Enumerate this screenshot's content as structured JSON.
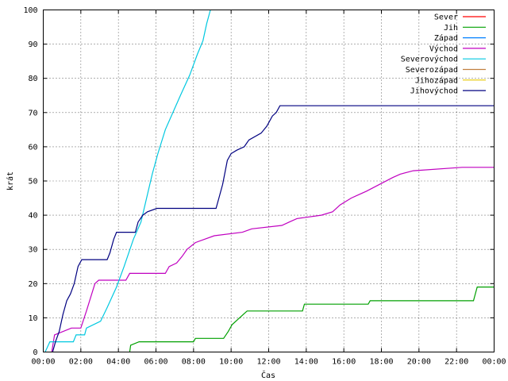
{
  "chart_data": {
    "type": "line",
    "xlabel": "Čas",
    "ylabel": "krát",
    "xlim": [
      0,
      24
    ],
    "ylim": [
      0,
      100
    ],
    "x_ticks": [
      {
        "x": 0,
        "label": "00:00"
      },
      {
        "x": 2,
        "label": "02:00"
      },
      {
        "x": 4,
        "label": "04:00"
      },
      {
        "x": 6,
        "label": "06:00"
      },
      {
        "x": 8,
        "label": "08:00"
      },
      {
        "x": 10,
        "label": "10:00"
      },
      {
        "x": 12,
        "label": "12:00"
      },
      {
        "x": 14,
        "label": "14:00"
      },
      {
        "x": 16,
        "label": "16:00"
      },
      {
        "x": 18,
        "label": "18:00"
      },
      {
        "x": 20,
        "label": "20:00"
      },
      {
        "x": 22,
        "label": "22:00"
      },
      {
        "x": 24,
        "label": "00:00"
      }
    ],
    "y_ticks": [
      0,
      10,
      20,
      30,
      40,
      50,
      60,
      70,
      80,
      90,
      100
    ],
    "grid": true,
    "legend_position": "top-right",
    "series": [
      {
        "name": "Sever",
        "color": "#ff0000",
        "points": []
      },
      {
        "name": "Jih",
        "color": "#00a000",
        "points": [
          [
            4.6,
            0
          ],
          [
            4.65,
            2
          ],
          [
            5.1,
            3
          ],
          [
            8.0,
            3
          ],
          [
            8.1,
            4
          ],
          [
            9.6,
            4
          ],
          [
            9.85,
            6
          ],
          [
            10.05,
            8
          ],
          [
            10.45,
            10
          ],
          [
            10.65,
            11
          ],
          [
            10.85,
            12
          ],
          [
            13.8,
            12
          ],
          [
            13.9,
            14
          ],
          [
            17.3,
            14
          ],
          [
            17.4,
            15
          ],
          [
            22.9,
            15
          ],
          [
            23.1,
            19
          ],
          [
            24,
            19
          ]
        ]
      },
      {
        "name": "Západ",
        "color": "#0080ff",
        "points": []
      },
      {
        "name": "Východ",
        "color": "#c000c0",
        "points": [
          [
            0.45,
            0
          ],
          [
            0.6,
            5
          ],
          [
            1.5,
            7
          ],
          [
            2.0,
            7
          ],
          [
            2.3,
            12
          ],
          [
            2.75,
            20
          ],
          [
            2.95,
            21
          ],
          [
            4.4,
            21
          ],
          [
            4.6,
            23
          ],
          [
            6.5,
            23
          ],
          [
            6.7,
            25
          ],
          [
            7.1,
            26
          ],
          [
            7.4,
            28
          ],
          [
            7.65,
            30
          ],
          [
            8.1,
            32
          ],
          [
            8.6,
            33
          ],
          [
            9.1,
            34
          ],
          [
            10.6,
            35
          ],
          [
            11.1,
            36
          ],
          [
            12.7,
            37
          ],
          [
            13.1,
            38
          ],
          [
            13.5,
            39
          ],
          [
            14.8,
            40
          ],
          [
            15.4,
            41
          ],
          [
            15.8,
            43
          ],
          [
            16.4,
            45
          ],
          [
            16.8,
            46
          ],
          [
            17.2,
            47
          ],
          [
            17.9,
            49
          ],
          [
            18.6,
            51
          ],
          [
            19.0,
            52
          ],
          [
            19.7,
            53
          ],
          [
            22.3,
            54
          ],
          [
            24,
            54
          ]
        ]
      },
      {
        "name": "Severovýchod",
        "color": "#00c8e0",
        "points": [
          [
            0.1,
            0
          ],
          [
            0.35,
            3
          ],
          [
            0.7,
            3
          ],
          [
            1.6,
            3
          ],
          [
            1.75,
            5
          ],
          [
            2.2,
            5
          ],
          [
            2.3,
            7
          ],
          [
            3.05,
            9
          ],
          [
            3.4,
            13
          ],
          [
            3.9,
            19
          ],
          [
            4.3,
            25
          ],
          [
            4.8,
            33
          ],
          [
            5.2,
            38
          ],
          [
            5.5,
            45
          ],
          [
            5.8,
            52
          ],
          [
            6.1,
            58
          ],
          [
            6.5,
            65
          ],
          [
            6.9,
            70
          ],
          [
            7.3,
            75
          ],
          [
            7.8,
            81
          ],
          [
            8.2,
            87
          ],
          [
            8.5,
            91
          ],
          [
            8.7,
            96
          ],
          [
            8.9,
            100
          ]
        ]
      },
      {
        "name": "Severozápad",
        "color": "#c08040",
        "points": []
      },
      {
        "name": "Jihozápad",
        "color": "#e6c800",
        "points": []
      },
      {
        "name": "Jihovýchod",
        "color": "#000080",
        "points": [
          [
            0.5,
            0
          ],
          [
            0.65,
            3
          ],
          [
            0.85,
            6
          ],
          [
            1.05,
            11
          ],
          [
            1.25,
            15
          ],
          [
            1.45,
            17
          ],
          [
            1.65,
            20
          ],
          [
            1.85,
            25
          ],
          [
            2.05,
            27
          ],
          [
            3.4,
            27
          ],
          [
            3.55,
            29
          ],
          [
            3.75,
            33
          ],
          [
            3.9,
            35
          ],
          [
            4.9,
            35
          ],
          [
            5.05,
            38
          ],
          [
            5.3,
            40
          ],
          [
            5.55,
            41
          ],
          [
            6.05,
            42
          ],
          [
            9.2,
            42
          ],
          [
            9.35,
            45
          ],
          [
            9.55,
            49
          ],
          [
            9.8,
            56
          ],
          [
            10.0,
            58
          ],
          [
            10.3,
            59
          ],
          [
            10.7,
            60
          ],
          [
            10.95,
            62
          ],
          [
            11.6,
            64
          ],
          [
            11.9,
            66
          ],
          [
            12.2,
            69
          ],
          [
            12.4,
            70
          ],
          [
            12.6,
            72
          ],
          [
            24,
            72
          ]
        ]
      }
    ]
  }
}
